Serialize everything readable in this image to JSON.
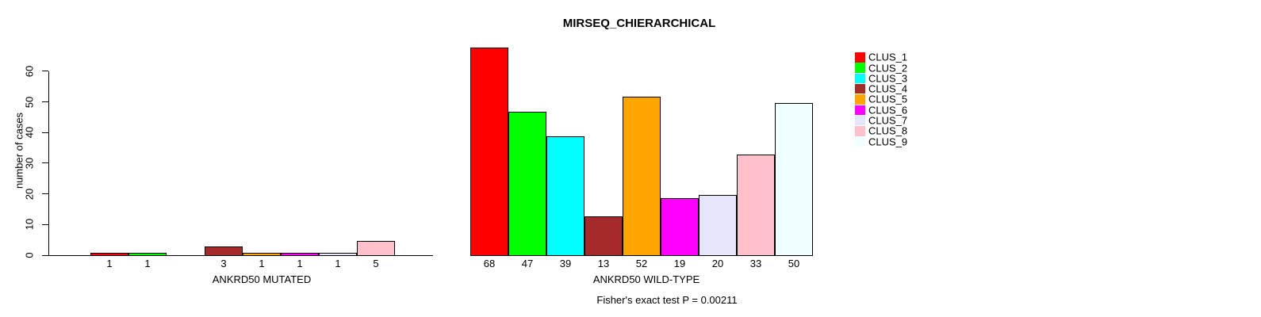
{
  "title": "MIRSEQ_CHIERARCHICAL",
  "footer": "Fisher's exact test P = 0.00211",
  "chart_data": {
    "type": "bar",
    "title": "MIRSEQ_CHIERARCHICAL",
    "ylabel": "number of cases",
    "ylim": [
      0,
      68
    ],
    "yticks": [
      0,
      10,
      20,
      30,
      40,
      50,
      60
    ],
    "grid": false,
    "legend_position": "right",
    "categories": [
      "CLUS_1",
      "CLUS_2",
      "CLUS_3",
      "CLUS_4",
      "CLUS_5",
      "CLUS_6",
      "CLUS_7",
      "CLUS_8",
      "CLUS_9"
    ],
    "colors": [
      "#FF0000",
      "#00FF00",
      "#00FFFF",
      "#A52A2A",
      "#FFA500",
      "#FF00FF",
      "#E6E6FA",
      "#FFC0CB",
      "#F0FFFF"
    ],
    "panels": [
      {
        "xlabel": "ANKRD50 MUTATED",
        "values": [
          1,
          1,
          0,
          3,
          1,
          1,
          1,
          5,
          0
        ]
      },
      {
        "xlabel": "ANKRD50 WILD-TYPE",
        "values": [
          68,
          47,
          39,
          13,
          52,
          19,
          20,
          33,
          50
        ]
      }
    ],
    "annotation": "Fisher's exact test P = 0.00211"
  }
}
